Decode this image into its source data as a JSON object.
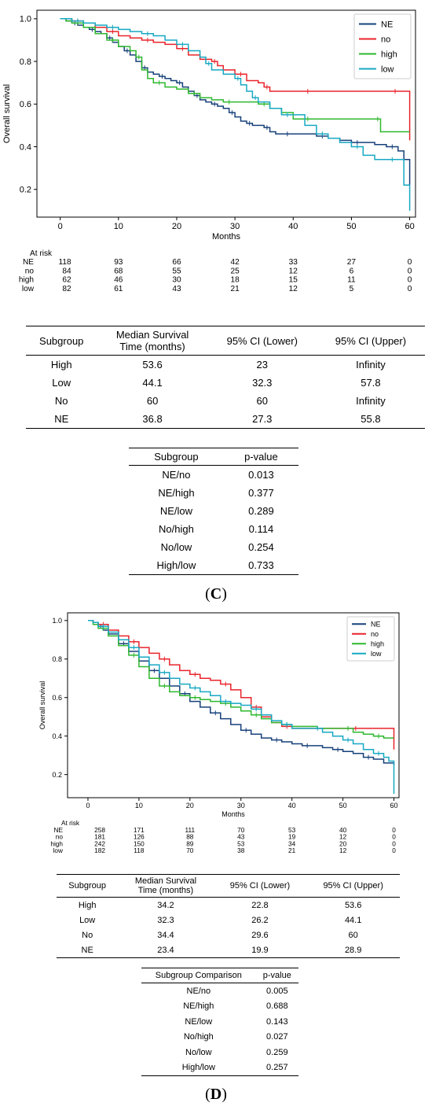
{
  "colors": {
    "NE": "#17407a",
    "no": "#e8242b",
    "high": "#2eb82e",
    "low": "#17a8c3"
  },
  "chart_data": [
    {
      "type": "line",
      "xlabel": "Months",
      "ylabel": "Overall survival",
      "xlim": [
        -4,
        61
      ],
      "ylim": [
        0.07,
        1.04
      ],
      "xticks": [
        "0",
        "10",
        "20",
        "30",
        "40",
        "50",
        "60"
      ],
      "yticks": [
        "0.2",
        "0.4",
        "0.6",
        "0.8",
        "1.0"
      ],
      "legend_position": "top-right",
      "series": [
        {
          "name": "NE",
          "color": "#17407a",
          "x": [
            0,
            1,
            2,
            3,
            4,
            5,
            6,
            7,
            8,
            9,
            10,
            11,
            12,
            13,
            14,
            15,
            16,
            17,
            18,
            19,
            20,
            21,
            22,
            23,
            24,
            25,
            26,
            27,
            28,
            29,
            30,
            31,
            32,
            33,
            34,
            35,
            36,
            37,
            38,
            40,
            42,
            44,
            46,
            48,
            50,
            52,
            54,
            56,
            58,
            59,
            60
          ],
          "y": [
            1.0,
            0.99,
            0.98,
            0.97,
            0.96,
            0.95,
            0.94,
            0.93,
            0.91,
            0.89,
            0.87,
            0.85,
            0.83,
            0.8,
            0.77,
            0.75,
            0.74,
            0.73,
            0.72,
            0.71,
            0.7,
            0.68,
            0.66,
            0.64,
            0.62,
            0.61,
            0.6,
            0.59,
            0.58,
            0.56,
            0.54,
            0.52,
            0.51,
            0.5,
            0.5,
            0.49,
            0.47,
            0.46,
            0.46,
            0.46,
            0.46,
            0.45,
            0.44,
            0.43,
            0.42,
            0.42,
            0.41,
            0.4,
            0.38,
            0.34,
            0.22
          ]
        },
        {
          "name": "no",
          "color": "#e8242b",
          "x": [
            0,
            1,
            2,
            4,
            6,
            8,
            10,
            12,
            14,
            16,
            18,
            20,
            22,
            24,
            26,
            27,
            28,
            30,
            32,
            34,
            35,
            36,
            38,
            40,
            45,
            50,
            55,
            60,
            60
          ],
          "y": [
            1.0,
            1.0,
            0.99,
            0.98,
            0.96,
            0.94,
            0.92,
            0.91,
            0.9,
            0.89,
            0.88,
            0.86,
            0.83,
            0.81,
            0.8,
            0.78,
            0.76,
            0.74,
            0.71,
            0.7,
            0.68,
            0.66,
            0.66,
            0.66,
            0.66,
            0.66,
            0.66,
            0.66,
            0.43
          ]
        },
        {
          "name": "high",
          "color": "#2eb82e",
          "x": [
            0,
            1,
            2,
            4,
            6,
            8,
            10,
            12,
            13,
            14,
            15,
            16,
            18,
            20,
            22,
            24,
            26,
            28,
            30,
            32,
            34,
            36,
            38,
            40,
            45,
            50,
            54,
            55,
            60
          ],
          "y": [
            1.0,
            0.99,
            0.98,
            0.96,
            0.93,
            0.9,
            0.87,
            0.85,
            0.82,
            0.76,
            0.72,
            0.7,
            0.68,
            0.67,
            0.65,
            0.63,
            0.62,
            0.61,
            0.61,
            0.61,
            0.6,
            0.58,
            0.56,
            0.53,
            0.53,
            0.53,
            0.53,
            0.47,
            0.47
          ]
        },
        {
          "name": "low",
          "color": "#17a8c3",
          "x": [
            0,
            1,
            2,
            4,
            6,
            8,
            10,
            12,
            14,
            16,
            18,
            20,
            22,
            24,
            25,
            26,
            28,
            30,
            31,
            32,
            33,
            34,
            36,
            38,
            40,
            42,
            44,
            46,
            48,
            50,
            52,
            54,
            56,
            58,
            59,
            60
          ],
          "y": [
            1.0,
            1.0,
            0.99,
            0.98,
            0.97,
            0.96,
            0.95,
            0.94,
            0.93,
            0.92,
            0.9,
            0.88,
            0.85,
            0.82,
            0.79,
            0.76,
            0.74,
            0.72,
            0.69,
            0.66,
            0.63,
            0.61,
            0.58,
            0.55,
            0.55,
            0.5,
            0.46,
            0.44,
            0.42,
            0.4,
            0.36,
            0.34,
            0.34,
            0.34,
            0.22,
            0.1
          ]
        }
      ],
      "at_risk": {
        "title": "At risk",
        "rows": [
          {
            "label": "NE",
            "values": [
              "118",
              "93",
              "66",
              "42",
              "33",
              "27",
              "0"
            ]
          },
          {
            "label": "no",
            "values": [
              "84",
              "68",
              "55",
              "25",
              "12",
              "6",
              "0"
            ]
          },
          {
            "label": "high",
            "values": [
              "62",
              "46",
              "30",
              "18",
              "15",
              "11",
              "0"
            ]
          },
          {
            "label": "low",
            "values": [
              "82",
              "61",
              "43",
              "21",
              "12",
              "5",
              "0"
            ]
          }
        ]
      }
    },
    {
      "type": "line",
      "xlabel": "Months",
      "ylabel": "Overall survival",
      "xlim": [
        -4,
        61
      ],
      "ylim": [
        0.08,
        1.04
      ],
      "xticks": [
        "0",
        "10",
        "20",
        "30",
        "40",
        "50",
        "60"
      ],
      "yticks": [
        "0.2",
        "0.4",
        "0.6",
        "0.8",
        "1.0"
      ],
      "legend_position": "top-right",
      "series": [
        {
          "name": "NE",
          "color": "#17407a",
          "x": [
            0,
            1,
            2,
            3,
            4,
            6,
            8,
            10,
            12,
            14,
            16,
            18,
            20,
            22,
            24,
            26,
            28,
            30,
            32,
            34,
            36,
            38,
            40,
            42,
            44,
            46,
            48,
            50,
            52,
            54,
            56,
            58,
            60
          ],
          "y": [
            1.0,
            0.99,
            0.97,
            0.95,
            0.93,
            0.88,
            0.84,
            0.79,
            0.74,
            0.7,
            0.66,
            0.62,
            0.58,
            0.55,
            0.52,
            0.49,
            0.46,
            0.43,
            0.41,
            0.39,
            0.38,
            0.37,
            0.36,
            0.35,
            0.35,
            0.34,
            0.33,
            0.32,
            0.31,
            0.29,
            0.28,
            0.26,
            0.25
          ]
        },
        {
          "name": "no",
          "color": "#e8242b",
          "x": [
            0,
            1,
            2,
            4,
            6,
            8,
            10,
            12,
            14,
            16,
            18,
            20,
            22,
            24,
            26,
            28,
            30,
            32,
            34,
            36,
            38,
            40,
            45,
            50,
            55,
            60,
            60
          ],
          "y": [
            1.0,
            0.99,
            0.98,
            0.95,
            0.92,
            0.89,
            0.86,
            0.83,
            0.8,
            0.77,
            0.74,
            0.72,
            0.7,
            0.69,
            0.67,
            0.64,
            0.6,
            0.55,
            0.5,
            0.47,
            0.45,
            0.44,
            0.44,
            0.44,
            0.44,
            0.44,
            0.33
          ]
        },
        {
          "name": "high",
          "color": "#2eb82e",
          "x": [
            0,
            1,
            2,
            4,
            6,
            8,
            10,
            12,
            14,
            16,
            18,
            20,
            22,
            24,
            26,
            28,
            30,
            32,
            34,
            36,
            38,
            40,
            45,
            50,
            52,
            54,
            56,
            58,
            60
          ],
          "y": [
            1.0,
            0.98,
            0.96,
            0.92,
            0.87,
            0.82,
            0.76,
            0.7,
            0.66,
            0.63,
            0.61,
            0.6,
            0.59,
            0.58,
            0.57,
            0.55,
            0.53,
            0.51,
            0.49,
            0.47,
            0.46,
            0.45,
            0.44,
            0.44,
            0.42,
            0.41,
            0.4,
            0.39,
            0.39
          ]
        },
        {
          "name": "low",
          "color": "#17a8c3",
          "x": [
            0,
            1,
            2,
            4,
            6,
            8,
            10,
            12,
            14,
            16,
            18,
            20,
            22,
            24,
            26,
            28,
            30,
            32,
            34,
            36,
            38,
            40,
            42,
            44,
            46,
            48,
            50,
            52,
            54,
            56,
            58,
            59,
            60
          ],
          "y": [
            1.0,
            0.99,
            0.97,
            0.94,
            0.9,
            0.86,
            0.81,
            0.77,
            0.73,
            0.7,
            0.67,
            0.65,
            0.63,
            0.61,
            0.58,
            0.57,
            0.56,
            0.54,
            0.51,
            0.48,
            0.46,
            0.44,
            0.44,
            0.44,
            0.42,
            0.4,
            0.38,
            0.36,
            0.33,
            0.31,
            0.29,
            0.27,
            0.1
          ]
        }
      ],
      "at_risk": {
        "title": "At risk",
        "rows": [
          {
            "label": "NE",
            "values": [
              "258",
              "171",
              "111",
              "70",
              "53",
              "40",
              "0"
            ]
          },
          {
            "label": "no",
            "values": [
              "181",
              "126",
              "88",
              "43",
              "19",
              "12",
              "0"
            ]
          },
          {
            "label": "high",
            "values": [
              "242",
              "150",
              "89",
              "53",
              "34",
              "20",
              "0"
            ]
          },
          {
            "label": "low",
            "values": [
              "182",
              "118",
              "70",
              "38",
              "21",
              "12",
              "0"
            ]
          }
        ]
      }
    }
  ],
  "tables": {
    "c_survival": {
      "headers": [
        "Subgroup",
        "Median Survival\nTime (months)",
        "95% CI (Lower)",
        "95% CI (Upper)"
      ],
      "rows": [
        [
          "High",
          "53.6",
          "23",
          "Infinity"
        ],
        [
          "Low",
          "44.1",
          "32.3",
          "57.8"
        ],
        [
          "No",
          "60",
          "60",
          "Infinity"
        ],
        [
          "NE",
          "36.8",
          "27.3",
          "55.8"
        ]
      ]
    },
    "c_pvalues": {
      "headers": [
        "Subgroup",
        "p-value"
      ],
      "rows": [
        [
          "NE/no",
          "0.013"
        ],
        [
          "NE/high",
          "0.377"
        ],
        [
          "NE/low",
          "0.289"
        ],
        [
          "No/high",
          "0.114"
        ],
        [
          "No/low",
          "0.254"
        ],
        [
          "High/low",
          "0.733"
        ]
      ]
    },
    "d_survival": {
      "headers": [
        "Subgroup",
        "Median Survival\nTime (months)",
        "95% CI (Lower)",
        "95% CI (Upper)"
      ],
      "rows": [
        [
          "High",
          "34.2",
          "22.8",
          "53.6"
        ],
        [
          "Low",
          "32.3",
          "26.2",
          "44.1"
        ],
        [
          "No",
          "34.4",
          "29.6",
          "60"
        ],
        [
          "NE",
          "23.4",
          "19.9",
          "28.9"
        ]
      ]
    },
    "d_pvalues": {
      "headers": [
        "Subgroup Comparison",
        "p-value"
      ],
      "rows": [
        [
          "NE/no",
          "0.005"
        ],
        [
          "NE/high",
          "0.688"
        ],
        [
          "NE/low",
          "0.143"
        ],
        [
          "No/high",
          "0.027"
        ],
        [
          "No/low",
          "0.259"
        ],
        [
          "High/low",
          "0.257"
        ]
      ]
    }
  },
  "panel_labels": {
    "c": {
      "open": "(",
      "letter": "C",
      "close": ")"
    },
    "d": {
      "open": "(",
      "letter": "D",
      "close": ")"
    }
  }
}
